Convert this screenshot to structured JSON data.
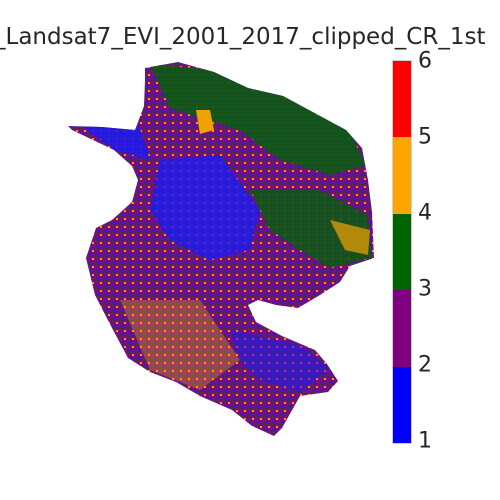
{
  "title": "_Landsat7_EVI_2001_2017_clipped_CR_1st",
  "colorbar": {
    "ticks": [
      "1",
      "2",
      "3",
      "4",
      "5",
      "6"
    ],
    "classes": [
      {
        "value_range": [
          1,
          2
        ],
        "color": "#0000ff"
      },
      {
        "value_range": [
          2,
          3
        ],
        "color": "#800080"
      },
      {
        "value_range": [
          3,
          4
        ],
        "color": "#006400"
      },
      {
        "value_range": [
          4,
          5
        ],
        "color": "#ffa500"
      },
      {
        "value_range": [
          5,
          6
        ],
        "color": "#ff0000"
      }
    ]
  },
  "background_color": "#ffffff"
}
